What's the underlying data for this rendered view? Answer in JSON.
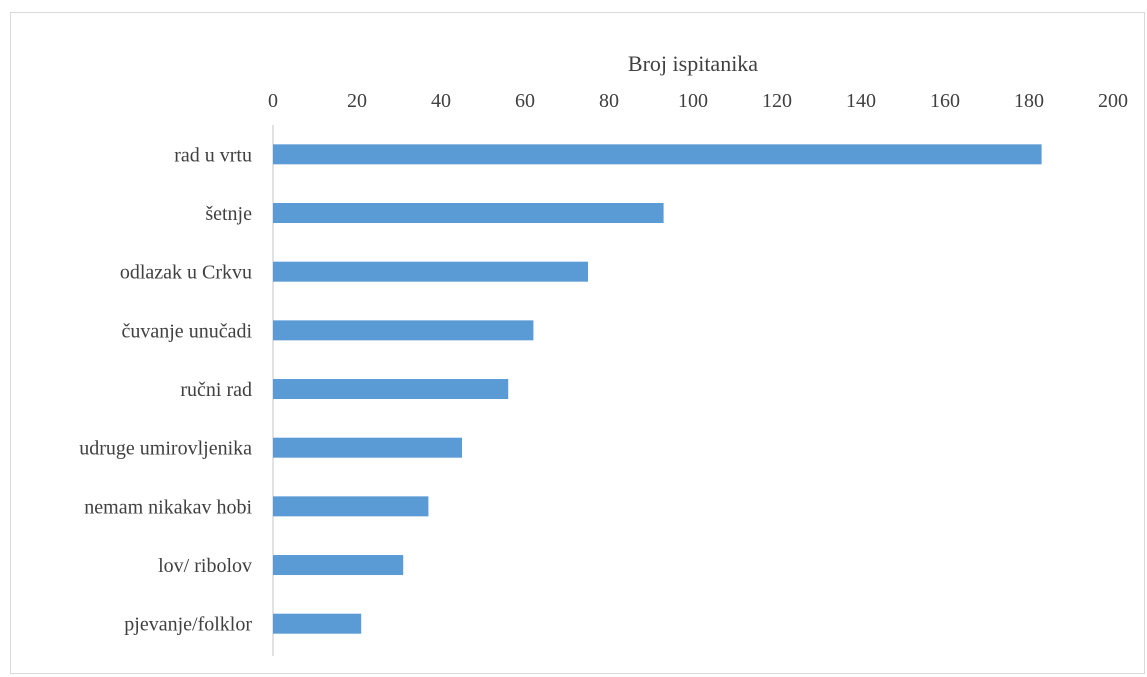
{
  "chart_data": {
    "type": "bar",
    "orientation": "horizontal",
    "title": "",
    "xlabel": "Broj ispitanika",
    "ylabel": "",
    "xlim": [
      0,
      200
    ],
    "x_ticks": [
      "0",
      "20",
      "40",
      "60",
      "80",
      "100",
      "120",
      "140",
      "160",
      "180",
      "200"
    ],
    "x_axis_position": "top",
    "grid": false,
    "legend": "none",
    "categories": [
      "rad u vrtu",
      "šetnje",
      "odlazak u Crkvu",
      "čuvanje unučadi",
      "ručni rad",
      "udruge umirovljenika",
      "nemam nikakav hobi",
      "lov/ ribolov",
      "pjevanje/folklor"
    ],
    "values": [
      183,
      93,
      75,
      62,
      56,
      45,
      37,
      31,
      21
    ],
    "bar_color": "#5b9bd5",
    "axis_color": "#d9d9d9"
  }
}
